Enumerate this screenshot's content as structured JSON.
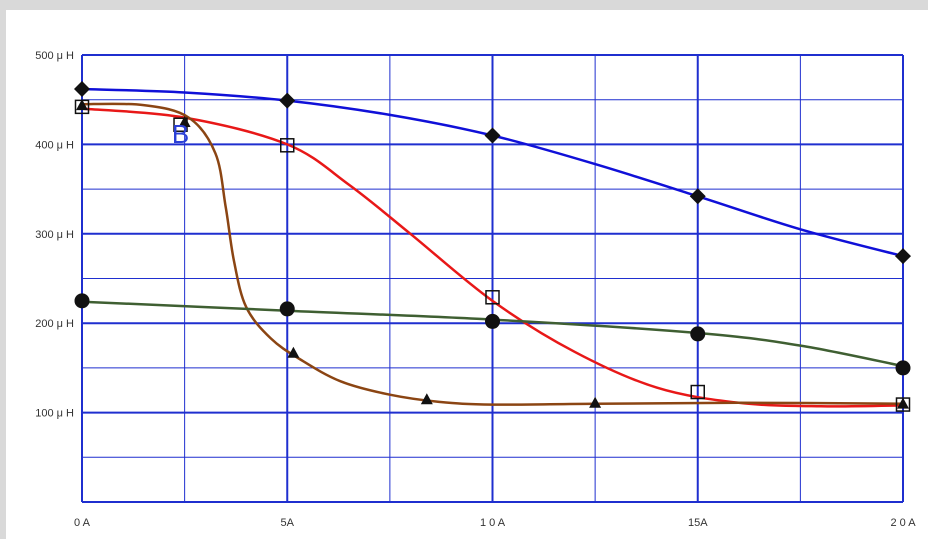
{
  "colors": {
    "background": "#d9d9d9",
    "panel": "#ffffff",
    "grid": "#1f2fcf"
  },
  "chart_data": {
    "type": "line",
    "title": "",
    "xlabel": "",
    "ylabel": "",
    "xlim": [
      0,
      20
    ],
    "ylim": [
      0,
      500
    ],
    "grid": true,
    "x_ticks": [
      {
        "value": 0,
        "label": "0 A"
      },
      {
        "value": 5,
        "label": "5A"
      },
      {
        "value": 10,
        "label": "1 0 A"
      },
      {
        "value": 15,
        "label": "15A"
      },
      {
        "value": 20,
        "label": "2 0 A"
      }
    ],
    "y_ticks": [
      {
        "value": 100,
        "label": "100 μ H"
      },
      {
        "value": 200,
        "label": "200 μ H"
      },
      {
        "value": 300,
        "label": "300 μ H"
      },
      {
        "value": 400,
        "label": "400 μ H"
      },
      {
        "value": 500,
        "label": "500 μ H"
      }
    ],
    "annotations": [
      {
        "text": "B",
        "x": 2.4,
        "y": 413,
        "color": "#2a3fd6"
      }
    ],
    "series": [
      {
        "color": "#1010d8",
        "marker": "diamond",
        "points": [
          [
            0,
            462
          ],
          [
            5,
            449
          ],
          [
            10,
            410
          ],
          [
            15,
            342
          ],
          [
            20,
            275
          ]
        ],
        "curve": [
          [
            0,
            462
          ],
          [
            2.5,
            458
          ],
          [
            5,
            449
          ],
          [
            7.5,
            433
          ],
          [
            10,
            410
          ],
          [
            12.5,
            378
          ],
          [
            15,
            342
          ],
          [
            17.5,
            305
          ],
          [
            20,
            275
          ]
        ]
      },
      {
        "color": "#e81818",
        "marker": "square-open",
        "points": [
          [
            0,
            442
          ],
          [
            2.4,
            422
          ],
          [
            5,
            399
          ],
          [
            10,
            229
          ],
          [
            15,
            123
          ],
          [
            20,
            109
          ]
        ],
        "curve": [
          [
            0,
            440
          ],
          [
            2.5,
            430
          ],
          [
            5,
            400
          ],
          [
            6.5,
            355
          ],
          [
            8,
            300
          ],
          [
            10,
            225
          ],
          [
            12,
            168
          ],
          [
            14,
            128
          ],
          [
            16,
            111
          ],
          [
            18,
            107
          ],
          [
            20,
            108
          ]
        ]
      },
      {
        "color": "#8b4513",
        "marker": "triangle",
        "points": [
          [
            0,
            444
          ],
          [
            2.5,
            425
          ],
          [
            5.15,
            167
          ],
          [
            8.4,
            115
          ],
          [
            12.5,
            111
          ],
          [
            20,
            110
          ]
        ],
        "curve": [
          [
            0,
            445
          ],
          [
            1.5,
            444
          ],
          [
            2.6,
            430
          ],
          [
            3.25,
            390
          ],
          [
            3.5,
            330
          ],
          [
            3.7,
            270
          ],
          [
            4.0,
            218
          ],
          [
            4.6,
            183
          ],
          [
            5.3,
            160
          ],
          [
            6.3,
            135
          ],
          [
            7.5,
            120
          ],
          [
            8.7,
            112
          ],
          [
            10,
            109
          ],
          [
            12.5,
            110
          ],
          [
            16,
            111
          ],
          [
            20,
            110
          ]
        ]
      },
      {
        "color": "#3f5f32",
        "marker": "circle",
        "points": [
          [
            0,
            225
          ],
          [
            5,
            216
          ],
          [
            10,
            202
          ],
          [
            15,
            188
          ],
          [
            20,
            150
          ]
        ],
        "curve": [
          [
            0,
            224
          ],
          [
            5,
            214
          ],
          [
            10,
            204
          ],
          [
            15,
            189
          ],
          [
            17.5,
            175
          ],
          [
            20,
            152
          ]
        ]
      }
    ]
  }
}
